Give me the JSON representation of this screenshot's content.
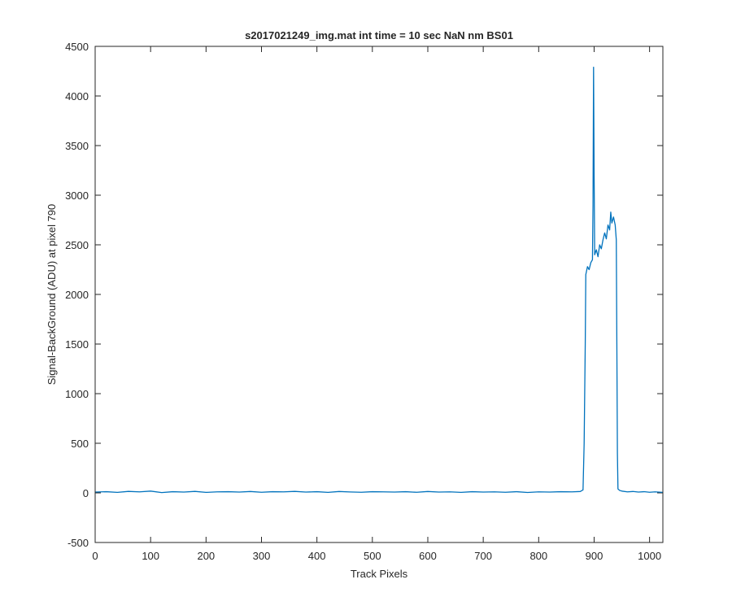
{
  "chart_data": {
    "type": "line",
    "title": "s2017021249_img.mat int time = 10 sec  NaN nm BS01",
    "xlabel": "Track Pixels",
    "ylabel": "Signal-BackGround (ADU) at pixel 790",
    "xlim": [
      0,
      1024
    ],
    "ylim": [
      -500,
      4500
    ],
    "xticks": [
      0,
      100,
      200,
      300,
      400,
      500,
      600,
      700,
      800,
      900,
      1000
    ],
    "yticks": [
      -500,
      0,
      500,
      1000,
      1500,
      2000,
      2500,
      3000,
      3500,
      4000,
      4500
    ],
    "xtick_labels": [
      "0",
      "100",
      "200",
      "300",
      "400",
      "500",
      "600",
      "700",
      "800",
      "900",
      "1000"
    ],
    "ytick_labels": [
      "-500",
      "0",
      "500",
      "1000",
      "1500",
      "2000",
      "2500",
      "3000",
      "3500",
      "4000",
      "4500"
    ],
    "grid": false,
    "line_color": "#0072bd",
    "series": [
      {
        "points": [
          [
            0,
            8
          ],
          [
            20,
            12
          ],
          [
            40,
            5
          ],
          [
            60,
            15
          ],
          [
            80,
            10
          ],
          [
            100,
            18
          ],
          [
            120,
            3
          ],
          [
            140,
            12
          ],
          [
            160,
            8
          ],
          [
            180,
            15
          ],
          [
            200,
            5
          ],
          [
            220,
            10
          ],
          [
            240,
            12
          ],
          [
            260,
            8
          ],
          [
            280,
            14
          ],
          [
            300,
            6
          ],
          [
            320,
            12
          ],
          [
            340,
            10
          ],
          [
            360,
            15
          ],
          [
            380,
            8
          ],
          [
            400,
            12
          ],
          [
            420,
            5
          ],
          [
            440,
            14
          ],
          [
            460,
            9
          ],
          [
            480,
            6
          ],
          [
            500,
            12
          ],
          [
            520,
            10
          ],
          [
            540,
            8
          ],
          [
            560,
            12
          ],
          [
            580,
            6
          ],
          [
            600,
            14
          ],
          [
            620,
            8
          ],
          [
            640,
            10
          ],
          [
            660,
            5
          ],
          [
            680,
            12
          ],
          [
            700,
            8
          ],
          [
            720,
            10
          ],
          [
            740,
            6
          ],
          [
            760,
            12
          ],
          [
            780,
            4
          ],
          [
            800,
            10
          ],
          [
            820,
            8
          ],
          [
            840,
            12
          ],
          [
            860,
            10
          ],
          [
            875,
            14
          ],
          [
            880,
            30
          ],
          [
            882,
            500
          ],
          [
            884,
            1500
          ],
          [
            885,
            2200
          ],
          [
            888,
            2280
          ],
          [
            891,
            2250
          ],
          [
            894,
            2320
          ],
          [
            897,
            2350
          ],
          [
            898,
            2900
          ],
          [
            899,
            4290
          ],
          [
            900,
            3200
          ],
          [
            901,
            2400
          ],
          [
            904,
            2450
          ],
          [
            907,
            2380
          ],
          [
            910,
            2500
          ],
          [
            913,
            2460
          ],
          [
            916,
            2550
          ],
          [
            919,
            2620
          ],
          [
            922,
            2560
          ],
          [
            925,
            2700
          ],
          [
            928,
            2650
          ],
          [
            930,
            2830
          ],
          [
            932,
            2720
          ],
          [
            935,
            2780
          ],
          [
            938,
            2700
          ],
          [
            940,
            2550
          ],
          [
            941,
            1500
          ],
          [
            942,
            400
          ],
          [
            943,
            40
          ],
          [
            946,
            25
          ],
          [
            950,
            18
          ],
          [
            960,
            10
          ],
          [
            970,
            14
          ],
          [
            980,
            8
          ],
          [
            990,
            12
          ],
          [
            1000,
            6
          ],
          [
            1010,
            10
          ],
          [
            1024,
            5
          ]
        ]
      }
    ]
  }
}
